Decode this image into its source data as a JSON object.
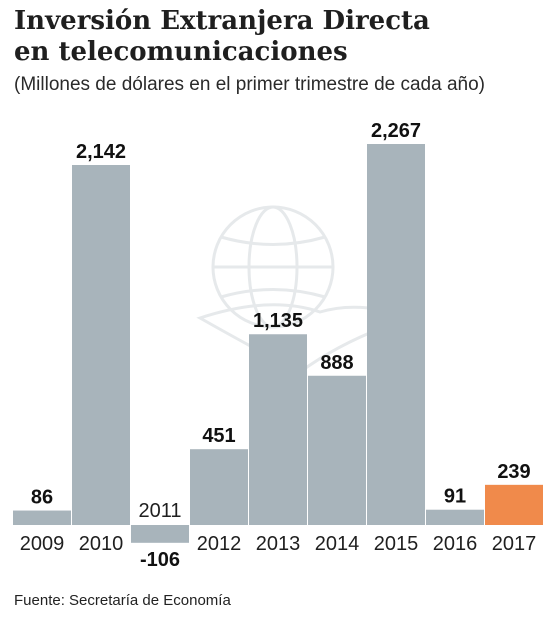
{
  "header": {
    "title_line1": "Inversión Extranjera Directa",
    "title_line2": "en telecomunicaciones",
    "subtitle": "(Millones de dólares en el primer trimestre de cada año)"
  },
  "footer": {
    "source": "Fuente: Secretaría de Economía"
  },
  "colors": {
    "bar": "#a8b4bb",
    "highlight": "#f08a4b"
  },
  "chart_data": {
    "type": "bar",
    "title": "Inversión Extranjera Directa en telecomunicaciones",
    "subtitle": "(Millones de dólares en el primer trimestre de cada año)",
    "categories": [
      "2009",
      "2010",
      "2011",
      "2012",
      "2013",
      "2014",
      "2015",
      "2016",
      "2017"
    ],
    "values": [
      86,
      2142,
      -106,
      451,
      1135,
      888,
      2267,
      91,
      239
    ],
    "value_labels": [
      "86",
      "2,142",
      "-106",
      "451",
      "1,135",
      "888",
      "2,267",
      "91",
      "239"
    ],
    "highlight_category": "2017",
    "xlabel": "",
    "ylabel": "",
    "ylim": [
      -106,
      2267
    ],
    "grid": false,
    "legend": "none"
  }
}
